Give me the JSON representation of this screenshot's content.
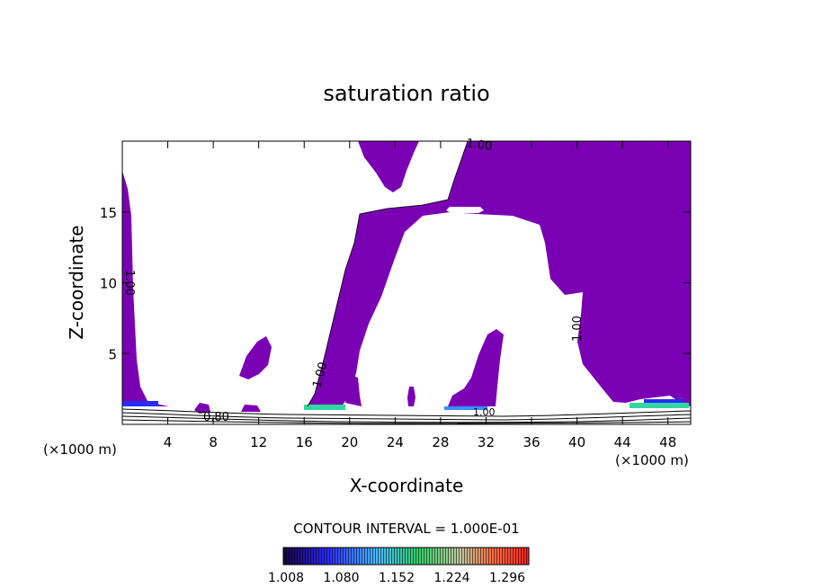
{
  "chart_data": {
    "type": "contour",
    "title": "saturation ratio",
    "xlabel": "X-coordinate",
    "ylabel": "Z-coordinate",
    "x_unit": "(×1000 m)",
    "x_unit_right": "(×1000 m)",
    "xlim": [
      0,
      50
    ],
    "ylim": [
      0,
      20
    ],
    "xticks": [
      4,
      8,
      12,
      16,
      20,
      24,
      28,
      32,
      36,
      40,
      44,
      48
    ],
    "yticks": [
      5,
      10,
      15
    ],
    "contour_interval_text": "CONTOUR INTERVAL = 1.000E-01",
    "contour_labels": [
      "1.00",
      "1.00",
      "1.00",
      "1.00",
      "0.80",
      "1.00"
    ],
    "fill_threshold": 1.0,
    "fill_color": "#7a00b4",
    "colorbar": {
      "ticks": [
        "1.008",
        "1.080",
        "1.152",
        "1.224",
        "1.296"
      ],
      "colors": [
        "#000000",
        "#2a2aff",
        "#48b8ff",
        "#33d06a",
        "#d0d040",
        "#ff5a2a",
        "#ff2020"
      ]
    }
  }
}
